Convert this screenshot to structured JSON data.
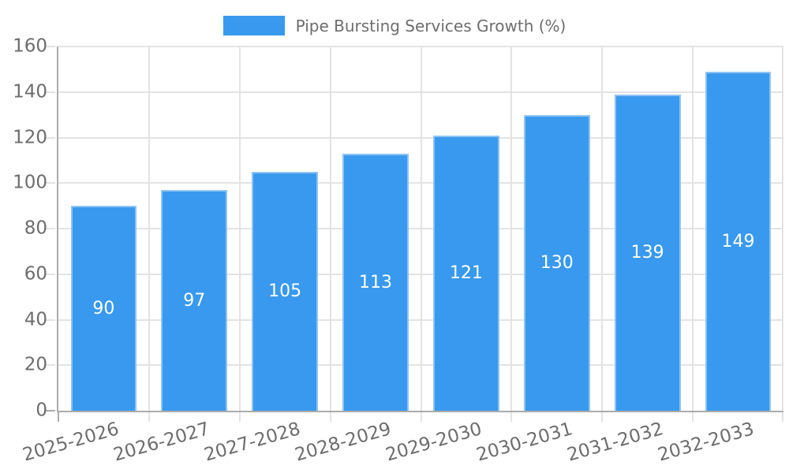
{
  "legend": {
    "label": "Pipe Bursting Services Growth (%)"
  },
  "chart_data": {
    "type": "bar",
    "title": "",
    "legend_label": "Pipe Bursting Services Growth (%)",
    "legend_position": "top",
    "categories": [
      "2025-2026",
      "2026-2027",
      "2027-2028",
      "2028-2029",
      "2029-2030",
      "2030-2031",
      "2031-2032",
      "2032-2033"
    ],
    "values": [
      90,
      97,
      105,
      113,
      121,
      130,
      139,
      149
    ],
    "xlabel": "",
    "ylabel": "",
    "ylim": [
      0,
      160
    ],
    "ytick_step": 20,
    "yticks": [
      0,
      20,
      40,
      60,
      80,
      100,
      120,
      140,
      160
    ],
    "grid": true,
    "bar_width_fraction": 0.73,
    "colors": {
      "bar_fill": "#3999ee",
      "bar_border": "#8fc3f2",
      "value_label": "#ffffff",
      "grid_line": "#e3e3e3",
      "axis_line": "#ababab",
      "tick_text": "#6d6d6d"
    }
  }
}
